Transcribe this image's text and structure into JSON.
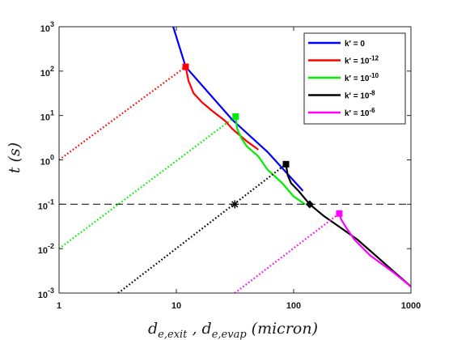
{
  "chart_data": {
    "type": "line",
    "xscale": "log",
    "yscale": "log",
    "xlim": [
      1,
      1000
    ],
    "ylim": [
      0.001,
      1000
    ],
    "xlabel": {
      "base": "d",
      "sub1": "e,exit",
      "sep": " , ",
      "sub2": "e,evap",
      "unit": " (micron)"
    },
    "ylabel": "t (s)",
    "xticks": [
      {
        "value": 1,
        "label": "1"
      },
      {
        "value": 10,
        "label": "10"
      },
      {
        "value": 100,
        "label": "100"
      },
      {
        "value": 1000,
        "label": "1000"
      }
    ],
    "yticks": [
      {
        "value": 0.001,
        "base": "10",
        "exp": "-3"
      },
      {
        "value": 0.01,
        "base": "10",
        "exp": "-2"
      },
      {
        "value": 0.1,
        "base": "10",
        "exp": "-1"
      },
      {
        "value": 1,
        "base": "10",
        "exp": "0"
      },
      {
        "value": 10,
        "base": "10",
        "exp": "1"
      },
      {
        "value": 100,
        "base": "10",
        "exp": "2"
      },
      {
        "value": 1000,
        "base": "10",
        "exp": "3"
      }
    ],
    "grid": false,
    "legend_position": "top-right",
    "series": [
      {
        "name": "k′ = 0",
        "legend_label": "k′ = 0",
        "color": "#0000ff",
        "style": "solid",
        "points": [
          [
            9.4,
            1000
          ],
          [
            12,
            125
          ],
          [
            30,
            8
          ],
          [
            60,
            1.5
          ],
          [
            120,
            0.2
          ]
        ]
      },
      {
        "name": "k′ = 10^-12",
        "legend_label": "k′ = 10",
        "legend_exp": "-12",
        "color": "#ff0000",
        "style": "solid",
        "points": [
          [
            12,
            125
          ],
          [
            12.7,
            60
          ],
          [
            14,
            32
          ],
          [
            16.5,
            20
          ],
          [
            20,
            13
          ],
          [
            26,
            7.6
          ],
          [
            30,
            5
          ],
          [
            40,
            2.6
          ],
          [
            50,
            1.7
          ]
        ]
      },
      {
        "name": "k′ = 10^-10",
        "legend_label": "k′ = 10",
        "legend_exp": "-10",
        "color": "#00ee00",
        "style": "solid",
        "points": [
          [
            32,
            9.5
          ],
          [
            33,
            5
          ],
          [
            36,
            3
          ],
          [
            40,
            2
          ],
          [
            50,
            1.2
          ],
          [
            60,
            0.6
          ],
          [
            80,
            0.3
          ],
          [
            100,
            0.15
          ],
          [
            125,
            0.1
          ]
        ]
      },
      {
        "name": "k′ = 10^-8",
        "legend_label": "k′ = 10",
        "legend_exp": "-8",
        "color": "#000000",
        "style": "solid",
        "points": [
          [
            86,
            0.8
          ],
          [
            89,
            0.45
          ],
          [
            95,
            0.3
          ],
          [
            110,
            0.2
          ],
          [
            137,
            0.1
          ],
          [
            180,
            0.055
          ],
          [
            250,
            0.03
          ],
          [
            350,
            0.016
          ],
          [
            500,
            0.007
          ],
          [
            700,
            0.0032
          ],
          [
            1000,
            0.0014
          ]
        ]
      },
      {
        "name": "k′ = 10^-6",
        "legend_label": "k′ = 10",
        "legend_exp": "-6",
        "color": "#ff00ff",
        "style": "solid",
        "points": [
          [
            245,
            0.062
          ],
          [
            255,
            0.045
          ],
          [
            280,
            0.03
          ],
          [
            330,
            0.016
          ],
          [
            450,
            0.007
          ],
          [
            700,
            0.003
          ],
          [
            1000,
            0.0014
          ]
        ]
      },
      {
        "name": "red dotted",
        "color": "#ff0000",
        "style": "dotted",
        "points": [
          [
            1,
            1
          ],
          [
            12,
            125
          ]
        ]
      },
      {
        "name": "green dotted",
        "color": "#00ee00",
        "style": "dotted",
        "points": [
          [
            1,
            0.01
          ],
          [
            32,
            9.5
          ]
        ]
      },
      {
        "name": "black dotted",
        "color": "#000000",
        "style": "dotted",
        "points": [
          [
            3.2,
            0.001
          ],
          [
            86,
            0.8
          ]
        ]
      },
      {
        "name": "magenta dotted",
        "color": "#ff00ff",
        "style": "dotted",
        "points": [
          [
            31.5,
            0.001
          ],
          [
            245,
            0.062
          ]
        ]
      },
      {
        "name": "reference t = 0.1 s",
        "color": "#000000",
        "style": "dashed",
        "points": [
          [
            1,
            0.1
          ],
          [
            1000,
            0.1
          ]
        ]
      }
    ],
    "markers": [
      {
        "x": 12,
        "y": 125,
        "shape": "square",
        "color": "#ff0000"
      },
      {
        "x": 32,
        "y": 9.5,
        "shape": "square",
        "color": "#00ee00"
      },
      {
        "x": 86,
        "y": 0.8,
        "shape": "square",
        "color": "#000000"
      },
      {
        "x": 245,
        "y": 0.062,
        "shape": "square",
        "color": "#ff00ff"
      },
      {
        "x": 137,
        "y": 0.1,
        "shape": "diamond",
        "color": "#000000"
      },
      {
        "x": 31.5,
        "y": 0.1,
        "shape": "asterisk",
        "color": "#000000"
      }
    ]
  }
}
